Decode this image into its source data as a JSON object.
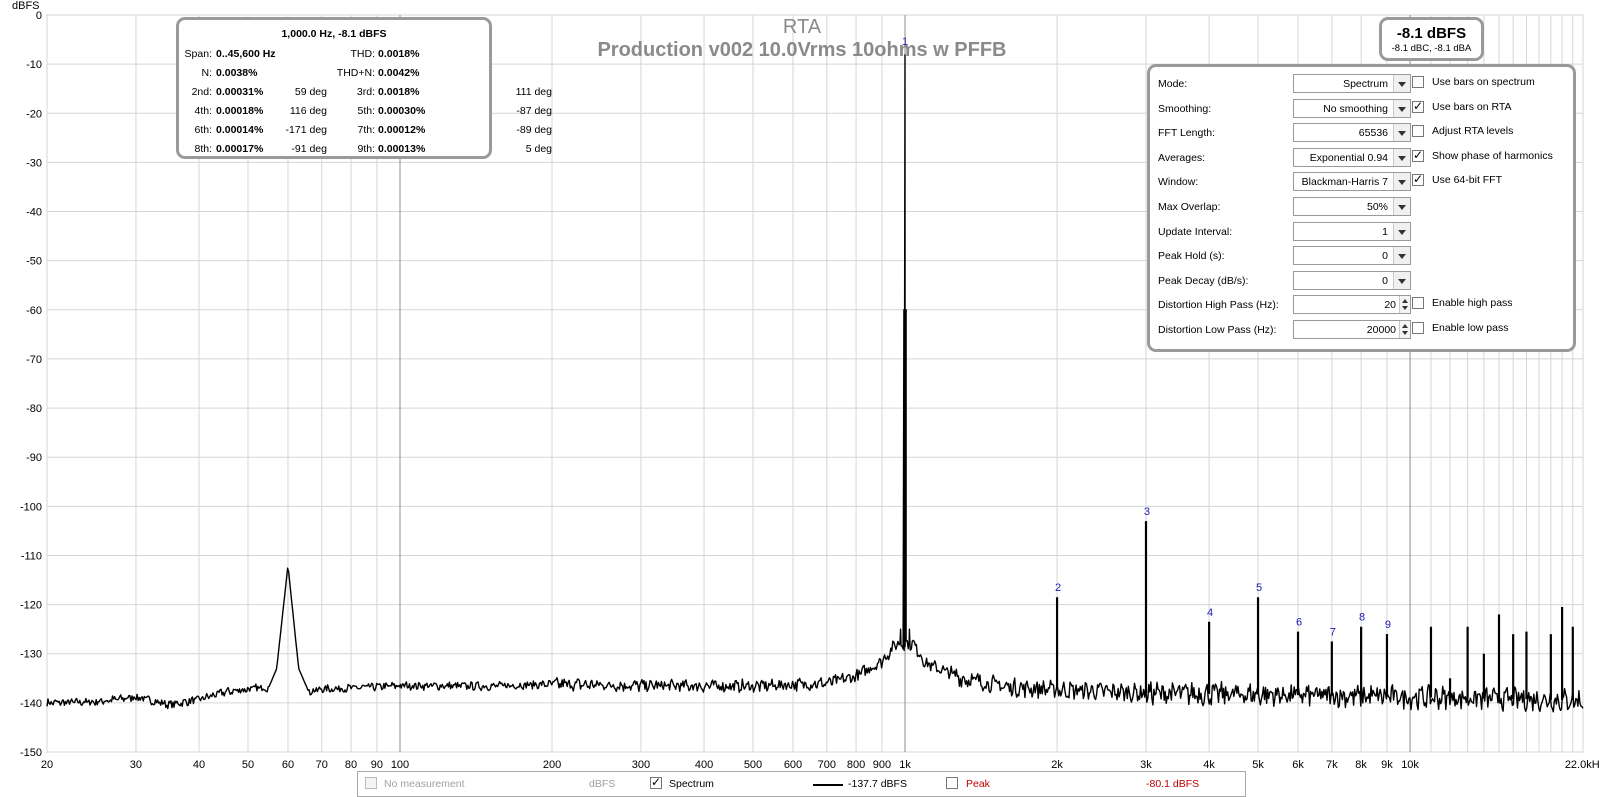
{
  "chart_data": {
    "type": "line",
    "title": "RTA",
    "subtitle": "Production v002 10.0Vrms 10ohms w PFFB",
    "ylabel": "dBFS",
    "xlabel": "",
    "x_scale": "log",
    "xlim": [
      20,
      22000
    ],
    "ylim": [
      -150,
      0
    ],
    "grid": true,
    "y_ticks": [
      0,
      -10,
      -20,
      -30,
      -40,
      -50,
      -60,
      -70,
      -80,
      -90,
      -100,
      -110,
      -120,
      -130,
      -140,
      -150
    ],
    "y_tick_labels": [
      "0",
      "-10",
      "-20",
      "-30",
      "-40",
      "-50",
      "-60",
      "-70",
      "-80",
      "-90",
      "-100",
      "-110",
      "-120",
      "-130",
      "-140",
      "-150"
    ],
    "x_ticks": [
      20,
      30,
      40,
      50,
      60,
      70,
      80,
      90,
      100,
      200,
      300,
      400,
      500,
      600,
      700,
      800,
      900,
      1000,
      2000,
      3000,
      4000,
      5000,
      6000,
      7000,
      8000,
      9000,
      10000,
      22000
    ],
    "x_tick_labels": [
      "20",
      "30",
      "40",
      "50",
      "60",
      "70",
      "80",
      "90",
      "100",
      "200",
      "300",
      "400",
      "500",
      "600",
      "700",
      "800",
      "900",
      "1k",
      "2k",
      "3k",
      "4k",
      "5k",
      "6k",
      "7k",
      "8k",
      "9k",
      "10k",
      "22.0kHz"
    ],
    "series": [
      {
        "name": "Spectrum",
        "color": "#000000",
        "noise_floor": [
          [
            20,
            -140
          ],
          [
            25,
            -139.8
          ],
          [
            30,
            -138.8
          ],
          [
            35,
            -140.4
          ],
          [
            40,
            -139.3
          ],
          [
            45,
            -137.8
          ],
          [
            50,
            -137.2
          ],
          [
            55,
            -136.8
          ],
          [
            57,
            -133
          ],
          [
            60,
            -112
          ],
          [
            63,
            -133
          ],
          [
            66,
            -137.8
          ],
          [
            70,
            -137.2
          ],
          [
            80,
            -137
          ],
          [
            100,
            -136.5
          ],
          [
            150,
            -136.6
          ],
          [
            200,
            -136.2
          ],
          [
            300,
            -136.5
          ],
          [
            500,
            -136.6
          ],
          [
            700,
            -136
          ],
          [
            800,
            -134.6
          ],
          [
            900,
            -131.5
          ],
          [
            960,
            -128
          ],
          [
            1040,
            -128
          ],
          [
            1100,
            -132
          ],
          [
            1300,
            -135
          ],
          [
            1600,
            -136.8
          ],
          [
            2000,
            -137.3
          ],
          [
            3000,
            -138
          ],
          [
            5000,
            -138.3
          ],
          [
            10000,
            -138.8
          ],
          [
            22000,
            -139.5
          ]
        ],
        "noise_ripple_db": 1.6,
        "peaks": [
          {
            "label": "1",
            "freq": 1000,
            "db": -8.1
          },
          {
            "label": "2",
            "freq": 2000,
            "db": -118.5
          },
          {
            "label": "3",
            "freq": 3000,
            "db": -103
          },
          {
            "label": "4",
            "freq": 4000,
            "db": -123.5
          },
          {
            "label": "5",
            "freq": 5000,
            "db": -118.5
          },
          {
            "label": "6",
            "freq": 6000,
            "db": -125.5
          },
          {
            "label": "7",
            "freq": 7000,
            "db": -127.5
          },
          {
            "label": "8",
            "freq": 8000,
            "db": -124.5
          },
          {
            "label": "9",
            "freq": 9000,
            "db": -126
          },
          {
            "label": "",
            "freq": 11000,
            "db": -124.5
          },
          {
            "label": "",
            "freq": 12000,
            "db": -135
          },
          {
            "label": "",
            "freq": 13000,
            "db": -124.5
          },
          {
            "label": "",
            "freq": 14000,
            "db": -130
          },
          {
            "label": "",
            "freq": 15000,
            "db": -122
          },
          {
            "label": "",
            "freq": 16000,
            "db": -126
          },
          {
            "label": "",
            "freq": 17000,
            "db": -125.5
          },
          {
            "label": "",
            "freq": 19000,
            "db": -126
          },
          {
            "label": "",
            "freq": 20000,
            "db": -120.5
          },
          {
            "label": "",
            "freq": 21000,
            "db": -124.5
          }
        ]
      }
    ]
  },
  "distortion": {
    "header": "1,000.0 Hz, -8.1 dBFS",
    "span_label": "Span:",
    "span_value": "0..45,600 Hz",
    "thd_label": "THD:",
    "thd_value": "0.0018%",
    "n_label": "N:",
    "n_value": "0.0038%",
    "thdn_label": "THD+N:",
    "thdn_value": "0.0042%",
    "harmonics": [
      {
        "name": "2nd:",
        "value": "0.00031%",
        "phase": "59 deg"
      },
      {
        "name": "3rd:",
        "value": "0.0018%",
        "phase": "111 deg"
      },
      {
        "name": "4th:",
        "value": "0.00018%",
        "phase": "116 deg"
      },
      {
        "name": "5th:",
        "value": "0.00030%",
        "phase": "-87 deg"
      },
      {
        "name": "6th:",
        "value": "0.00014%",
        "phase": "-171 deg"
      },
      {
        "name": "7th:",
        "value": "0.00012%",
        "phase": "-89 deg"
      },
      {
        "name": "8th:",
        "value": "0.00017%",
        "phase": "-91 deg"
      },
      {
        "name": "9th:",
        "value": "0.00013%",
        "phase": "5 deg"
      }
    ]
  },
  "level": {
    "main": "-8.1 dBFS",
    "sub": "-8.1 dBC, -8.1 dBA"
  },
  "settings": {
    "rows": [
      {
        "label": "Mode:",
        "value": "Spectrum",
        "kind": "select"
      },
      {
        "label": "Smoothing:",
        "value": "No  smoothing",
        "kind": "select"
      },
      {
        "label": "FFT Length:",
        "value": "65536",
        "kind": "select"
      },
      {
        "label": "Averages:",
        "value": "Exponential 0.94",
        "kind": "select"
      },
      {
        "label": "Window:",
        "value": "Blackman-Harris 7",
        "kind": "select"
      },
      {
        "label": "Max Overlap:",
        "value": "50%",
        "kind": "select"
      },
      {
        "label": "Update Interval:",
        "value": "1",
        "kind": "select"
      },
      {
        "label": "Peak Hold (s):",
        "value": "0",
        "kind": "select"
      },
      {
        "label": "Peak Decay (dB/s):",
        "value": "0",
        "kind": "select"
      },
      {
        "label": "Distortion High Pass (Hz):",
        "value": "20",
        "kind": "spin"
      },
      {
        "label": "Distortion Low Pass (Hz):",
        "value": "20000",
        "kind": "spin"
      }
    ],
    "checks": [
      {
        "label": "Use bars on spectrum",
        "checked": false,
        "row": 0
      },
      {
        "label": "Use bars on RTA",
        "checked": true,
        "row": 1
      },
      {
        "label": "Adjust RTA levels",
        "checked": false,
        "row": 2
      },
      {
        "label": "Show phase of harmonics",
        "checked": true,
        "row": 3
      },
      {
        "label": "Use 64-bit FFT",
        "checked": true,
        "row": 4
      },
      {
        "label": "Enable high pass",
        "checked": false,
        "row": 9
      },
      {
        "label": "Enable low pass",
        "checked": false,
        "row": 10
      }
    ]
  },
  "legend": {
    "no_measurement": "No measurement",
    "no_measurement_unit": "dBFS",
    "spectrum_label": "Spectrum",
    "spectrum_value": "-137.7 dBFS",
    "peak_label": "Peak",
    "peak_value": "-80.1 dBFS",
    "peak_color": "#c00000",
    "disabled_color": "#a0a0a0"
  }
}
